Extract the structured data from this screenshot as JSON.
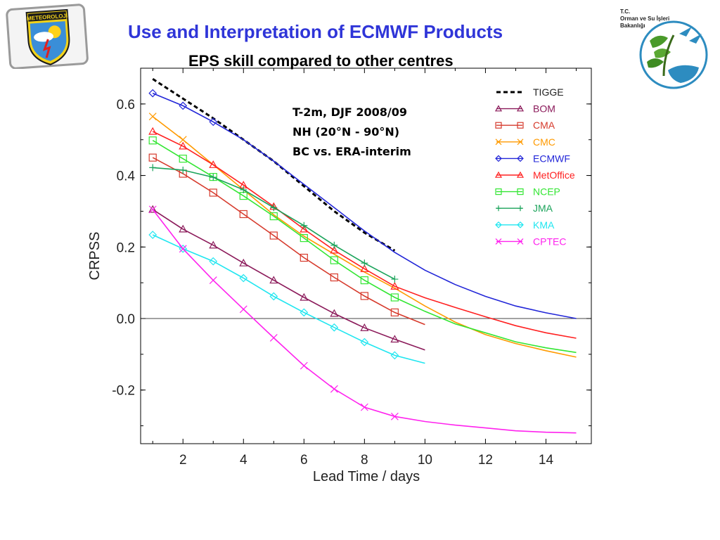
{
  "header": {
    "title": "Use and Interpretation of ECMWF Products",
    "subtitle": "EPS skill compared to other centres",
    "left_logo_text": "METEOROLOJİ",
    "ministry_lines": [
      "T.C.",
      "Orman ve Su İşleri",
      "Bakanlığı"
    ]
  },
  "colors": {
    "title": "#2f35d8",
    "TIGGE": "#000000",
    "BOM": "#8b1a5a",
    "CMA": "#d63a2c",
    "CMC": "#ff9a00",
    "ECMWF": "#2226d8",
    "MetOffice": "#ff2020",
    "NCEP": "#33e633",
    "JMA": "#1aa35a",
    "KMA": "#20e6f0",
    "CPTEC": "#ff22ee"
  },
  "chart_data": {
    "type": "line",
    "xlabel": "Lead Time / days",
    "ylabel": "CRPSS",
    "xlim": [
      0.6,
      15.5
    ],
    "ylim": [
      -0.35,
      0.7
    ],
    "x_ticks": [
      "2",
      "4",
      "6",
      "8",
      "10",
      "12",
      "14"
    ],
    "y_ticks": [
      "0.6",
      "0.4",
      "0.2",
      "0.0",
      "-0.2"
    ],
    "annotation": [
      "T-2m, DJF 2008/09",
      "NH (20°N - 90°N)",
      "BC vs. ERA-interim"
    ],
    "legend_position": "top-right",
    "series": [
      {
        "name": "TIGGE",
        "marker": "none",
        "dashed": true,
        "x": [
          1,
          2,
          3,
          4,
          5,
          6,
          7,
          8,
          9
        ],
        "y": [
          0.67,
          0.615,
          0.56,
          0.5,
          0.44,
          0.37,
          0.3,
          0.24,
          0.19
        ]
      },
      {
        "name": "BOM",
        "marker": "triangle",
        "x": [
          1,
          2,
          3,
          4,
          5,
          6,
          7,
          8,
          9,
          10
        ],
        "y": [
          0.305,
          0.25,
          0.205,
          0.155,
          0.107,
          0.059,
          0.014,
          -0.026,
          -0.058,
          -0.088
        ],
        "marked": 9
      },
      {
        "name": "CMA",
        "marker": "square",
        "x": [
          1,
          2,
          3,
          4,
          5,
          6,
          7,
          8,
          9,
          10
        ],
        "y": [
          0.45,
          0.405,
          0.352,
          0.292,
          0.232,
          0.17,
          0.115,
          0.063,
          0.017,
          -0.017
        ],
        "marked": 9
      },
      {
        "name": "CMC",
        "marker": "x",
        "x": [
          1,
          2,
          3,
          4,
          5,
          6,
          7,
          8,
          9,
          10,
          11,
          12,
          13,
          14,
          15
        ],
        "y": [
          0.565,
          0.5,
          0.43,
          0.36,
          0.29,
          0.23,
          0.18,
          0.13,
          0.085,
          0.035,
          -0.01,
          -0.045,
          -0.07,
          -0.09,
          -0.108
        ],
        "marked": 2
      },
      {
        "name": "ECMWF",
        "marker": "diamond",
        "x": [
          1,
          2,
          3,
          4,
          5,
          6,
          7,
          8,
          9,
          10,
          11,
          12,
          13,
          14,
          15
        ],
        "y": [
          0.63,
          0.595,
          0.55,
          0.5,
          0.44,
          0.375,
          0.31,
          0.245,
          0.185,
          0.135,
          0.095,
          0.062,
          0.035,
          0.016,
          0.0
        ],
        "marked": 3
      },
      {
        "name": "MetOffice",
        "marker": "triangle",
        "x": [
          1,
          2,
          3,
          4,
          5,
          6,
          7,
          8,
          9,
          10,
          11,
          12,
          13,
          14,
          15
        ],
        "y": [
          0.523,
          0.482,
          0.43,
          0.373,
          0.313,
          0.25,
          0.191,
          0.139,
          0.09,
          0.058,
          0.031,
          0.005,
          -0.02,
          -0.04,
          -0.055
        ],
        "marked": 9
      },
      {
        "name": "NCEP",
        "marker": "square",
        "x": [
          1,
          2,
          3,
          4,
          5,
          6,
          7,
          8,
          9,
          10,
          11,
          12,
          13,
          14,
          15
        ],
        "y": [
          0.498,
          0.447,
          0.396,
          0.343,
          0.286,
          0.225,
          0.163,
          0.107,
          0.059,
          0.02,
          -0.015,
          -0.04,
          -0.065,
          -0.082,
          -0.095
        ],
        "marked": 9
      },
      {
        "name": "JMA",
        "marker": "plus",
        "x": [
          1,
          2,
          3,
          4,
          5,
          6,
          7,
          8,
          9
        ],
        "y": [
          0.422,
          0.415,
          0.395,
          0.36,
          0.31,
          0.26,
          0.205,
          0.155,
          0.11
        ],
        "marked": 9
      },
      {
        "name": "KMA",
        "marker": "diamond",
        "x": [
          1,
          2,
          3,
          4,
          5,
          6,
          7,
          8,
          9,
          10
        ],
        "y": [
          0.234,
          0.195,
          0.16,
          0.113,
          0.062,
          0.017,
          -0.025,
          -0.066,
          -0.103,
          -0.125
        ],
        "marked": 9
      },
      {
        "name": "CPTEC",
        "marker": "x",
        "x": [
          1,
          2,
          3,
          4,
          5,
          6,
          7,
          8,
          9,
          10,
          11,
          12,
          13,
          14,
          15
        ],
        "y": [
          0.305,
          0.195,
          0.107,
          0.026,
          -0.054,
          -0.132,
          -0.197,
          -0.248,
          -0.274,
          -0.288,
          -0.298,
          -0.306,
          -0.314,
          -0.318,
          -0.32
        ],
        "marked": 9
      }
    ]
  }
}
